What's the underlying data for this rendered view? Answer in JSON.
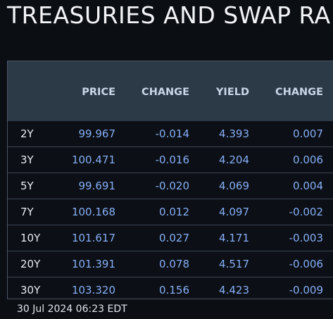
{
  "title": "TREASURIES AND SWAP RA",
  "table": {
    "headers": [
      "",
      "PRICE",
      "CHANGE",
      "YIELD",
      "CHANGE"
    ],
    "rows": [
      {
        "tenor": "2Y",
        "price": "99.967",
        "price_change": "-0.014",
        "yield": "4.393",
        "yield_change": "0.007"
      },
      {
        "tenor": "3Y",
        "price": "100.471",
        "price_change": "-0.016",
        "yield": "4.204",
        "yield_change": "0.006"
      },
      {
        "tenor": "5Y",
        "price": "99.691",
        "price_change": "-0.020",
        "yield": "4.069",
        "yield_change": "0.004"
      },
      {
        "tenor": "7Y",
        "price": "100.168",
        "price_change": "0.012",
        "yield": "4.097",
        "yield_change": "-0.002"
      },
      {
        "tenor": "10Y",
        "price": "101.617",
        "price_change": "0.027",
        "yield": "4.171",
        "yield_change": "-0.003"
      },
      {
        "tenor": "20Y",
        "price": "101.391",
        "price_change": "0.078",
        "yield": "4.517",
        "yield_change": "-0.006"
      },
      {
        "tenor": "30Y",
        "price": "103.320",
        "price_change": "0.156",
        "yield": "4.423",
        "yield_change": "-0.009"
      }
    ]
  },
  "timestamp": "30 Jul 2024 06:23 EDT",
  "colors": {
    "background": "#0b0e13",
    "header_background": "#2c3947",
    "header_text": "#c9d6e6",
    "value_text": "#86aef5",
    "tenor_text": "#e8ecf2",
    "row_divider": "#3b4553"
  }
}
